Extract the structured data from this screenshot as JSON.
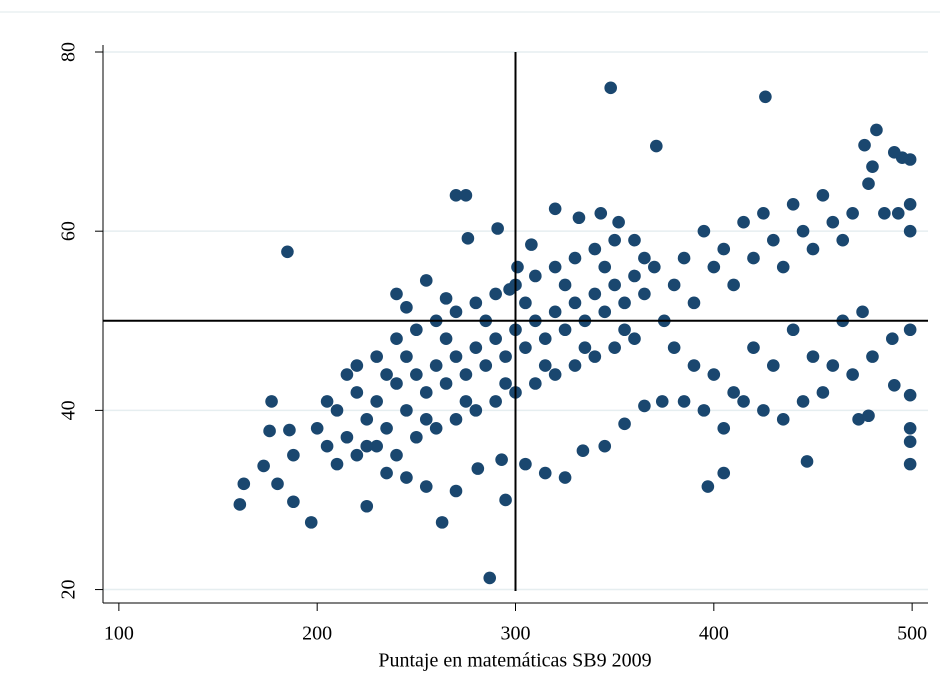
{
  "chart_data": {
    "type": "scatter",
    "x_label": "Puntaje en matemáticas SB9 2009",
    "x": [
      200,
      205,
      210,
      215,
      220,
      225,
      230,
      235,
      240,
      245,
      250,
      255,
      260,
      265,
      270,
      275,
      280,
      285,
      290,
      295,
      300,
      305,
      310,
      315,
      320,
      325,
      330,
      335,
      340,
      345,
      350,
      355,
      360,
      365,
      370,
      210,
      220,
      230,
      240,
      250,
      260,
      270,
      280,
      290,
      300,
      310,
      320,
      330,
      340,
      350,
      360,
      220,
      230,
      240,
      250,
      260,
      270,
      280,
      290,
      300,
      310,
      320,
      330,
      340,
      350,
      360,
      205,
      215,
      225,
      235,
      245,
      255,
      265,
      275,
      285,
      295,
      305,
      315,
      325,
      335,
      345,
      355,
      365,
      375,
      380,
      385,
      390,
      395,
      400,
      405,
      410,
      415,
      420,
      425,
      430,
      435,
      440,
      445,
      450,
      455,
      460,
      465,
      470,
      380,
      390,
      400,
      410,
      420,
      430,
      440,
      450,
      460,
      470,
      480,
      490,
      385,
      395,
      405,
      415,
      425,
      435,
      445,
      455,
      465,
      475,
      161,
      163,
      173,
      176,
      177,
      180,
      185,
      186,
      188,
      188,
      197,
      225,
      263,
      287,
      295,
      348,
      426,
      371,
      482,
      270,
      275,
      276,
      291,
      397,
      405,
      447,
      473,
      478,
      499,
      499,
      499,
      499,
      491,
      499,
      499,
      499,
      499,
      495,
      491,
      476,
      480,
      478,
      486,
      493,
      240,
      245,
      255,
      265,
      297,
      301,
      308,
      320,
      332,
      343,
      352,
      235,
      245,
      255,
      270,
      281,
      293,
      305,
      315,
      325,
      334,
      345,
      355,
      365,
      374
    ],
    "values": [
      38,
      36,
      40,
      37,
      42,
      39,
      41,
      38,
      43,
      40,
      44,
      42,
      45,
      43,
      46,
      44,
      47,
      45,
      48,
      46,
      49,
      47,
      50,
      48,
      51,
      49,
      52,
      50,
      53,
      51,
      54,
      52,
      55,
      53,
      56,
      34,
      35,
      36,
      35,
      37,
      38,
      39,
      40,
      41,
      42,
      43,
      44,
      45,
      46,
      47,
      48,
      45,
      46,
      48,
      49,
      50,
      51,
      52,
      53,
      54,
      55,
      56,
      57,
      58,
      59,
      59,
      41,
      44,
      36,
      44,
      46,
      39,
      48,
      41,
      50,
      43,
      52,
      45,
      54,
      47,
      56,
      49,
      57,
      50,
      54,
      57,
      52,
      60,
      56,
      58,
      54,
      61,
      57,
      62,
      59,
      56,
      63,
      60,
      58,
      64,
      61,
      59,
      62,
      47,
      45,
      44,
      42,
      47,
      45,
      49,
      46,
      45,
      44,
      46,
      48,
      41,
      40,
      38,
      41,
      40,
      39,
      41,
      42,
      50,
      51,
      29.5,
      31.8,
      33.8,
      37.7,
      41,
      31.8,
      57.7,
      37.8,
      35,
      29.8,
      27.5,
      29.3,
      27.5,
      21.3,
      30,
      76,
      75,
      69.5,
      71.3,
      64,
      64,
      59.2,
      60.3,
      31.5,
      33,
      34.3,
      39,
      39.4,
      34,
      36.5,
      38,
      41.7,
      42.8,
      49,
      60,
      63,
      68,
      68.2,
      68.8,
      69.6,
      67.2,
      65.3,
      62,
      62,
      53,
      51.5,
      54.5,
      52.5,
      53.5,
      56,
      58.5,
      62.5,
      61.5,
      62,
      61,
      33,
      32.5,
      31.5,
      31,
      33.5,
      34.5,
      34,
      33,
      32.5,
      35.5,
      36,
      38.5,
      40.5,
      41
    ],
    "color": "#1a476f",
    "xlim": [
      92,
      508
    ],
    "ylim": [
      18.5,
      80
    ],
    "xticks": [
      100,
      200,
      300,
      400,
      500
    ],
    "yticks": [
      20,
      40,
      60,
      80
    ],
    "xline": 300,
    "yline": 50,
    "grid": true
  }
}
